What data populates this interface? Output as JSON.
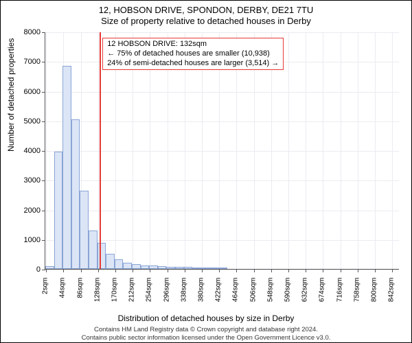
{
  "chart": {
    "type": "histogram",
    "title_main": "12, HOBSON DRIVE, SPONDON, DERBY, DE21 7TU",
    "title_sub": "Size of property relative to detached houses in Derby",
    "ylabel": "Number of detached properties",
    "xlabel": "Distribution of detached houses by size in Derby",
    "label_fontsize": 12,
    "title_fontsize": 13,
    "tick_fontsize": 11,
    "background_color": "#ffffff",
    "grid_color": "#eceaf0",
    "axis_color": "#555555",
    "bar_fill": "#dbe5f6",
    "bar_stroke": "#8aa5d6",
    "marker_color": "#e53935",
    "xlim": [
      0,
      860
    ],
    "ylim": [
      0,
      8000
    ],
    "ytick_step": 1000,
    "xtick_step": 42,
    "x_unit": "sqm",
    "bar_bin_width": 21,
    "marker_value": 132,
    "values": [
      100,
      3950,
      6850,
      5050,
      2630,
      1300,
      870,
      500,
      330,
      220,
      170,
      120,
      110,
      90,
      70,
      70,
      60,
      50,
      55,
      45,
      20,
      0,
      0,
      0,
      0,
      0,
      0,
      0,
      0,
      0,
      0,
      0,
      0,
      0,
      0,
      0,
      0,
      0,
      0,
      0,
      0
    ],
    "callout": {
      "line1": "12 HOBSON DRIVE: 132sqm",
      "line2": "← 75% of detached houses are smaller (10,938)",
      "line3": "24% of semi-detached houses are larger (3,514) →"
    },
    "attribution": {
      "line1": "Contains HM Land Registry data © Crown copyright and database right 2024.",
      "line2": "Contains public sector information licensed under the Open Government Licence v3.0."
    }
  }
}
